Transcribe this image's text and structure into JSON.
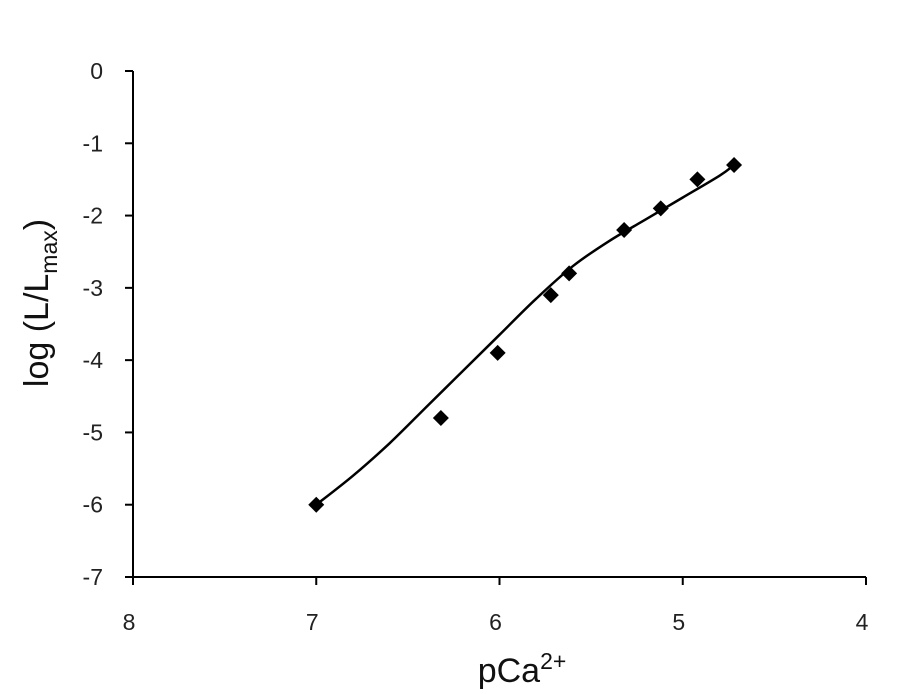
{
  "chart_data": {
    "type": "scatter",
    "xlabel": "pCa",
    "xlabel_superscript": "2+",
    "ylabel": "log (L/L",
    "ylabel_subscript": "max",
    "ylabel_close": ")",
    "xlim": [
      8,
      4
    ],
    "x_reversed": true,
    "ylim": [
      -7,
      0
    ],
    "x_ticks": [
      8,
      7,
      6,
      5,
      4
    ],
    "x_tick_labels": [
      "8",
      "7",
      "6",
      "5",
      "4"
    ],
    "y_ticks": [
      0,
      -1,
      -2,
      -3,
      -4,
      -5,
      -6,
      -7
    ],
    "y_tick_labels": [
      "0",
      "-1",
      "-2",
      "-3",
      "-4",
      "-5",
      "-6",
      "-7"
    ],
    "grid": false,
    "legend": "none",
    "marker": "diamond",
    "color": "#000000",
    "series": [
      {
        "x": [
          7.0,
          6.32,
          6.01,
          5.72,
          5.62,
          5.32,
          5.12,
          4.92,
          4.72
        ],
        "y": [
          -6.0,
          -4.8,
          -3.9,
          -3.1,
          -2.8,
          -2.2,
          -1.9,
          -1.5,
          -1.3
        ]
      }
    ],
    "fit_curve": {
      "x": [
        7.0,
        6.8,
        6.6,
        6.4,
        6.2,
        6.0,
        5.8,
        5.6,
        5.4,
        5.2,
        5.0,
        4.8,
        4.72
      ],
      "y": [
        -6.0,
        -5.6,
        -5.15,
        -4.65,
        -4.15,
        -3.65,
        -3.15,
        -2.7,
        -2.35,
        -2.05,
        -1.75,
        -1.45,
        -1.3
      ]
    }
  }
}
